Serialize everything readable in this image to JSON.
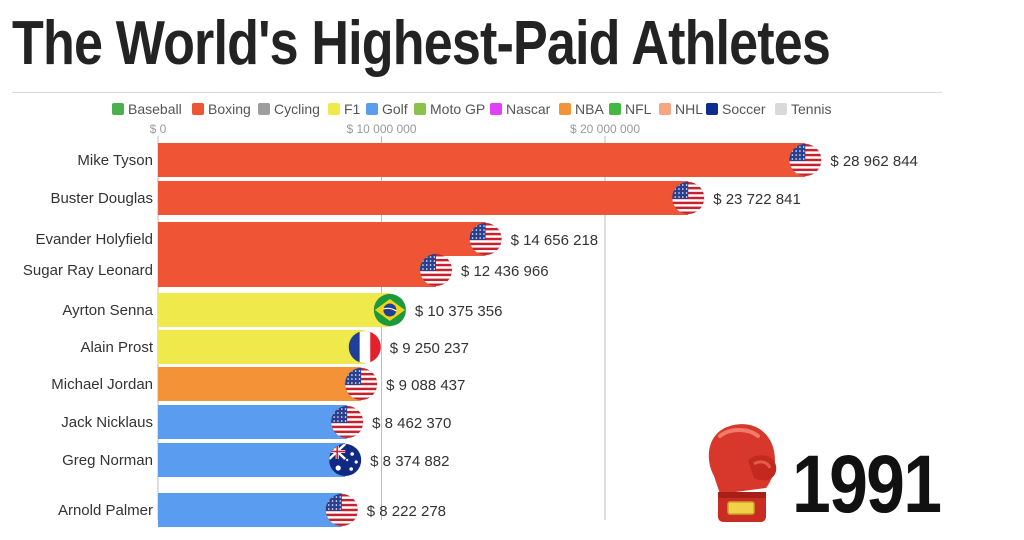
{
  "title": "The World's Highest-Paid Athletes",
  "year": "1991",
  "icon": "boxing-glove-icon",
  "chart_data": {
    "type": "bar",
    "orientation": "horizontal",
    "title": "The World's Highest-Paid Athletes",
    "xlabel": "",
    "ylabel": "",
    "xlim": [
      0,
      29000000
    ],
    "x_ticks": [
      {
        "value": 0,
        "label": "$ 0"
      },
      {
        "value": 10000000,
        "label": "$ 10 000 000"
      },
      {
        "value": 20000000,
        "label": "$ 20 000 000"
      }
    ],
    "legend_position": "top",
    "legend": [
      {
        "name": "Baseball",
        "color": "#4caf50"
      },
      {
        "name": "Boxing",
        "color": "#ef5434"
      },
      {
        "name": "Cycling",
        "color": "#9e9e9e"
      },
      {
        "name": "F1",
        "color": "#f0e94c"
      },
      {
        "name": "Golf",
        "color": "#5a9cf0"
      },
      {
        "name": "Moto GP",
        "color": "#8bc34a"
      },
      {
        "name": "Nascar",
        "color": "#e040fb"
      },
      {
        "name": "NBA",
        "color": "#f39237"
      },
      {
        "name": "NFL",
        "color": "#43b843"
      },
      {
        "name": "NHL",
        "color": "#f4a583"
      },
      {
        "name": "Soccer",
        "color": "#0d2a8f"
      },
      {
        "name": "Tennis",
        "color": "#d9d9d9"
      }
    ],
    "categories": [
      "Mike Tyson",
      "Buster Douglas",
      "Evander Holyfield",
      "Sugar Ray Leonard",
      "Ayrton Senna",
      "Alain Prost",
      "Michael Jordan",
      "Jack Nicklaus",
      "Greg Norman",
      "Arnold Palmer"
    ],
    "values": [
      28962844,
      23722841,
      14656218,
      12436966,
      10375356,
      9250237,
      9088437,
      8462370,
      8374882,
      8222278
    ],
    "value_labels": [
      "$ 28 962 844",
      "$ 23 722 841",
      "$ 14 656 218",
      "$ 12 436 966",
      "$ 10 375 356",
      "$ 9 250 237",
      "$ 9 088 437",
      "$ 8 462 370",
      "$ 8 374 882",
      "$ 8 222 278"
    ],
    "sports": [
      "Boxing",
      "Boxing",
      "Boxing",
      "Boxing",
      "F1",
      "F1",
      "NBA",
      "Golf",
      "Golf",
      "Golf"
    ],
    "flags": [
      "usa-flag-icon",
      "usa-flag-icon",
      "usa-flag-icon",
      "usa-flag-icon",
      "brazil-flag-icon",
      "france-flag-icon",
      "usa-flag-icon",
      "usa-flag-icon",
      "australia-flag-icon",
      "usa-flag-icon"
    ]
  }
}
